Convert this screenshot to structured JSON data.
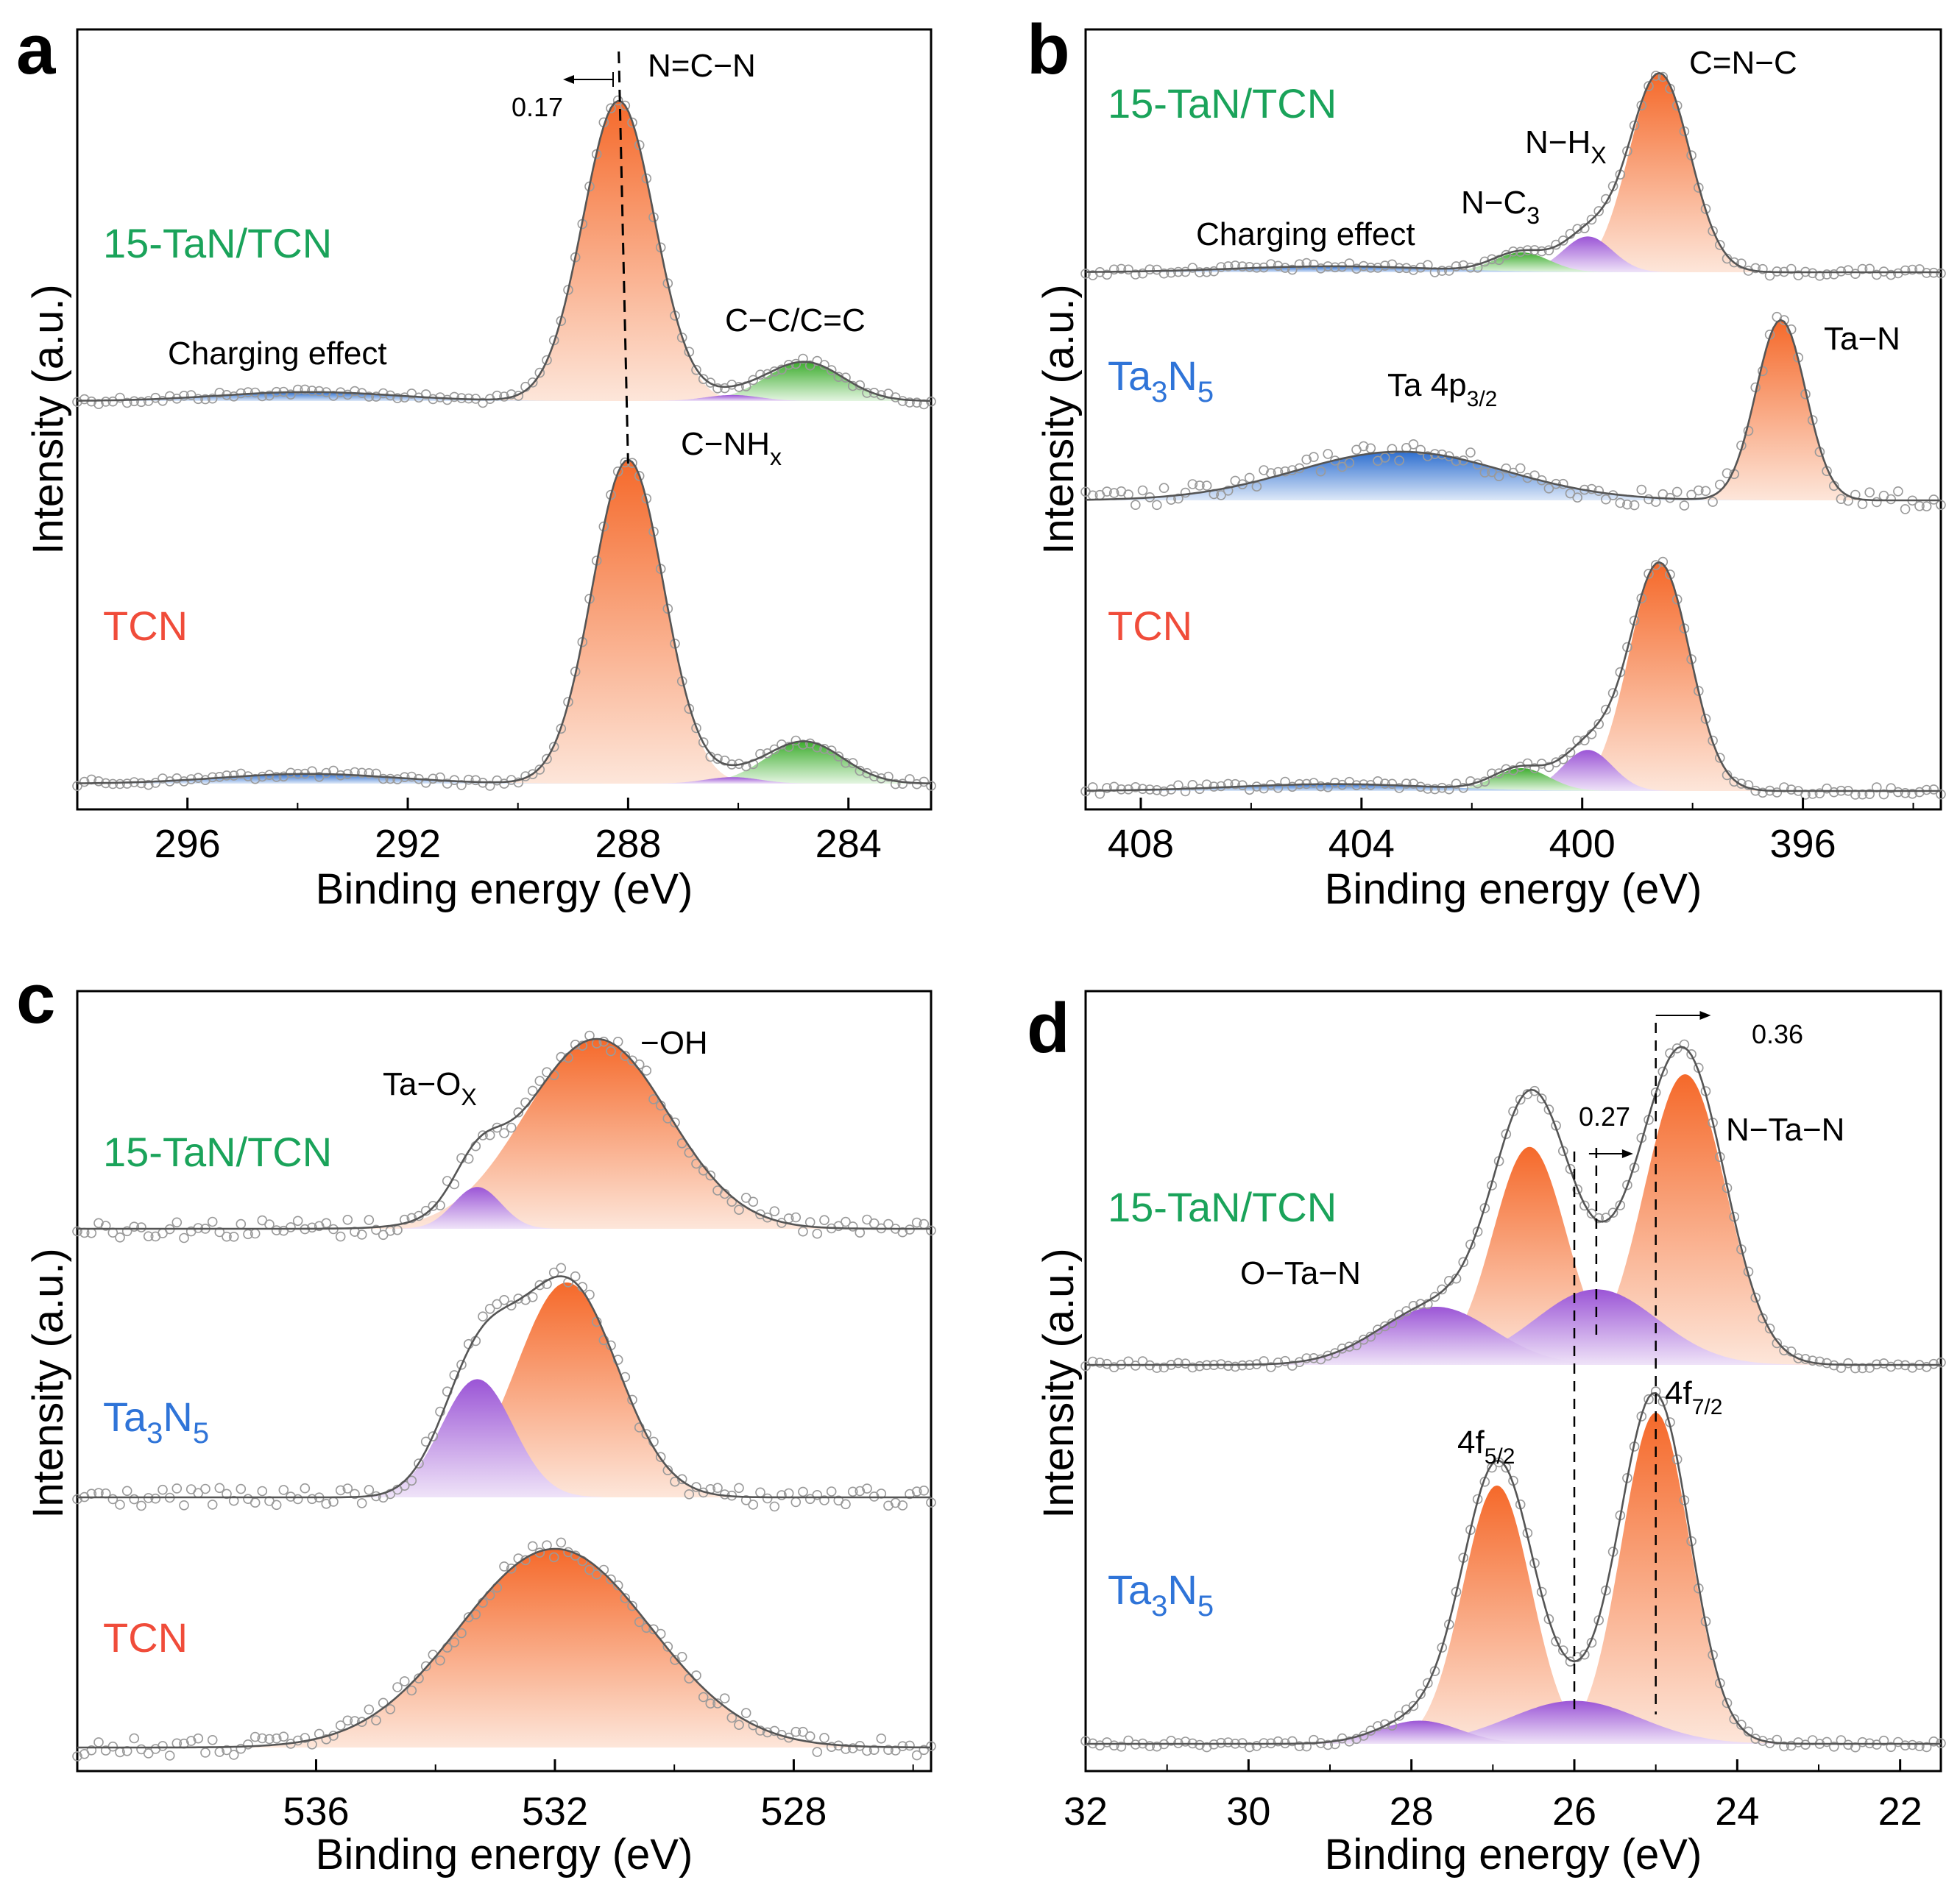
{
  "figure": {
    "colors": {
      "tcn": "#f04c3a",
      "tan_tcn": "#1aa35a",
      "ta3n5": "#2f74d8",
      "orange": "#f5692a",
      "green": "#3dad2e",
      "purple": "#9b55d6",
      "blue": "#2e6fd0"
    }
  },
  "chart_data": [
    {
      "panel": "a",
      "type": "line",
      "title": "",
      "xlabel": "Binding energy (eV)",
      "ylabel": "Intensity (a.u.)",
      "xlim": [
        298,
        282.5
      ],
      "xticks": [
        296,
        292,
        288,
        284
      ],
      "series": [
        {
          "name": "15-TaN/TCN",
          "peaks": [
            {
              "label": "N=C−N",
              "center": 288.17,
              "height": 1.0,
              "width": 0.65,
              "color": "orange"
            },
            {
              "label": "C−C/C=C",
              "center": 284.8,
              "height": 0.13,
              "width": 0.7,
              "color": "green"
            },
            {
              "label": "C−NHₓ",
              "center": 286.1,
              "height": 0.02,
              "width": 0.5,
              "color": "purple"
            },
            {
              "label": "Charging effect",
              "center": 293.8,
              "height": 0.03,
              "width": 1.6,
              "color": "blue"
            }
          ]
        },
        {
          "name": "TCN",
          "peaks": [
            {
              "label": "N=C−N",
              "center": 288.0,
              "height": 1.0,
              "width": 0.65,
              "color": "orange"
            },
            {
              "label": "C−C/C=C",
              "center": 284.8,
              "height": 0.13,
              "width": 0.7,
              "color": "green"
            },
            {
              "label": "C−NHₓ",
              "center": 286.1,
              "height": 0.02,
              "width": 0.5,
              "color": "purple"
            },
            {
              "label": "Charging effect",
              "center": 293.8,
              "height": 0.03,
              "width": 1.6,
              "color": "blue"
            }
          ]
        }
      ],
      "annotations": [
        "N=C−N",
        "0.17",
        "C−C/C=C",
        "Charging effect",
        "C−NH",
        "x"
      ],
      "shift_eV": 0.17
    },
    {
      "panel": "b",
      "type": "line",
      "title": "",
      "xlabel": "Binding energy (eV)",
      "ylabel": "Intensity (a.u.)",
      "xlim": [
        409,
        393.5
      ],
      "xticks": [
        408,
        404,
        400,
        396
      ],
      "series": [
        {
          "name": "15-TaN/TCN",
          "peaks": [
            {
              "label": "C=N−C",
              "center": 398.6,
              "height": 1.0,
              "width": 0.55,
              "color": "orange"
            },
            {
              "label": "N−Hx",
              "center": 399.9,
              "height": 0.18,
              "width": 0.45,
              "color": "purple"
            },
            {
              "label": "N−C3",
              "center": 401.1,
              "height": 0.1,
              "width": 0.5,
              "color": "green"
            },
            {
              "label": "Charging effect",
              "center": 404.5,
              "height": 0.03,
              "width": 1.8,
              "color": "blue"
            }
          ]
        },
        {
          "name": "Ta3N5",
          "peaks": [
            {
              "label": "Ta−N",
              "center": 396.4,
              "height": 1.0,
              "width": 0.45,
              "color": "orange"
            },
            {
              "label": "Ta 4p3/2",
              "center": 403.3,
              "height": 0.27,
              "width": 1.9,
              "color": "blue"
            }
          ]
        },
        {
          "name": "TCN",
          "peaks": [
            {
              "label": "C=N−C",
              "center": 398.6,
              "height": 1.0,
              "width": 0.55,
              "color": "orange"
            },
            {
              "label": "N−Hx",
              "center": 399.9,
              "height": 0.18,
              "width": 0.45,
              "color": "purple"
            },
            {
              "label": "N−C3",
              "center": 401.1,
              "height": 0.1,
              "width": 0.5,
              "color": "green"
            },
            {
              "label": "Charging effect",
              "center": 404.5,
              "height": 0.03,
              "width": 1.8,
              "color": "blue"
            }
          ]
        }
      ],
      "annotations": [
        "C=N−C",
        "N−H",
        "X",
        "N−C",
        "3",
        "Charging effect",
        "Ta−N",
        "Ta 4p",
        "3/2"
      ]
    },
    {
      "panel": "c",
      "type": "line",
      "title": "",
      "xlabel": "Binding energy (eV)",
      "ylabel": "Intensity (a.u.)",
      "xlim": [
        540,
        525.7
      ],
      "xticks": [
        536,
        532,
        528
      ],
      "series": [
        {
          "name": "15-TaN/TCN",
          "peaks": [
            {
              "label": "−OH",
              "center": 531.3,
              "height": 1.0,
              "width": 1.2,
              "color": "orange"
            },
            {
              "label": "Ta−Ox",
              "center": 533.3,
              "height": 0.22,
              "width": 0.4,
              "color": "purple"
            }
          ]
        },
        {
          "name": "Ta3N5",
          "peaks": [
            {
              "label": "−OH",
              "center": 531.8,
              "height": 1.0,
              "width": 0.85,
              "color": "orange"
            },
            {
              "label": "Ta−Ox",
              "center": 533.3,
              "height": 0.55,
              "width": 0.6,
              "color": "purple"
            }
          ]
        },
        {
          "name": "TCN",
          "peaks": [
            {
              "label": "−OH",
              "center": 532.0,
              "height": 1.0,
              "width": 1.6,
              "color": "orange"
            }
          ]
        }
      ],
      "annotations": [
        "−OH",
        "Ta−O",
        "X"
      ]
    },
    {
      "panel": "d",
      "type": "line",
      "title": "",
      "xlabel": "Binding energy (eV)",
      "ylabel": "Intensity (a.u.)",
      "xlim": [
        32,
        21.5
      ],
      "xticks": [
        32,
        30,
        28,
        26,
        24,
        22
      ],
      "series": [
        {
          "name": "15-TaN/TCN",
          "peaks": [
            {
              "label": "N−Ta−N 4f7/2",
              "center": 24.64,
              "height": 1.0,
              "width": 0.5,
              "color": "orange"
            },
            {
              "label": "N−Ta−N 4f5/2",
              "center": 26.55,
              "height": 0.75,
              "width": 0.45,
              "color": "orange"
            },
            {
              "label": "O−Ta−N 4f7/2",
              "center": 25.73,
              "height": 0.26,
              "width": 0.75,
              "color": "purple"
            },
            {
              "label": "O−Ta−N 4f5/2",
              "center": 27.7,
              "height": 0.2,
              "width": 0.7,
              "color": "purple"
            }
          ]
        },
        {
          "name": "Ta3N5",
          "peaks": [
            {
              "label": "4f7/2",
              "center": 25.0,
              "height": 1.0,
              "width": 0.42,
              "color": "orange"
            },
            {
              "label": "4f5/2",
              "center": 26.95,
              "height": 0.78,
              "width": 0.42,
              "color": "orange"
            },
            {
              "label": "O−Ta−N 4f7/2",
              "center": 26.0,
              "height": 0.13,
              "width": 0.8,
              "color": "purple"
            },
            {
              "label": "O−Ta−N 4f5/2",
              "center": 27.9,
              "height": 0.07,
              "width": 0.5,
              "color": "purple"
            }
          ]
        }
      ],
      "annotations": [
        "0.36",
        "0.27",
        "N−Ta−N",
        "O−Ta−N",
        "4f",
        "7/2",
        "5/2"
      ],
      "shifts_eV": [
        0.36,
        0.27
      ]
    }
  ],
  "labels": {
    "a": "a",
    "b": "b",
    "c": "c",
    "d": "d",
    "xlabel": "Binding energy (eV)",
    "ylabel": "Intensity (a.u.)",
    "s_tan": "15-TaN/TCN",
    "s_tcn": "TCN",
    "s_ta": "Ta",
    "s_ta_3": "3",
    "s_ta_n": "N",
    "s_ta_5": "5",
    "a_ncn": "N=C−N",
    "a_shift": "0.17",
    "a_cc": "C−C/C=C",
    "a_charge": "Charging effect",
    "a_cnh": "C−NH",
    "a_cnh_sub": "x",
    "b_cnc": "C=N−C",
    "b_nh": "N−H",
    "b_nh_sub": "X",
    "b_nc": "N−C",
    "b_nc_sub": "3",
    "b_charge": "Charging effect",
    "b_tan": "Ta−N",
    "b_ta4p": "Ta 4p",
    "b_ta4p_sub": "3/2",
    "c_oh": "−OH",
    "c_tao": "Ta−O",
    "c_tao_sub": "X",
    "d_036": "0.36",
    "d_027": "0.27",
    "d_ntan": "N−Ta−N",
    "d_otan": "O−Ta−N",
    "d_4f": "4f",
    "d_72": "7/2",
    "d_52": "5/2"
  }
}
